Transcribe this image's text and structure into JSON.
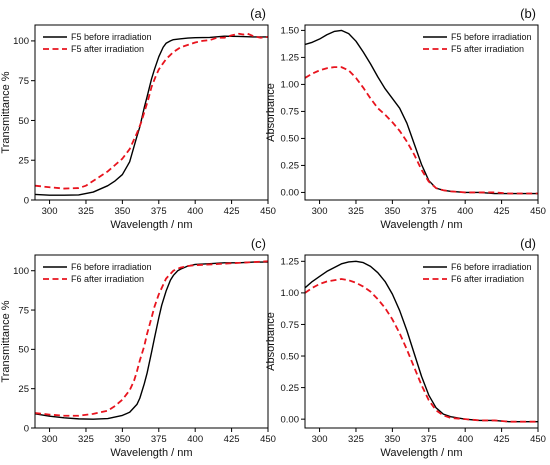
{
  "colors": {
    "before": "#000000",
    "after": "#e8141e",
    "axis": "#000000"
  },
  "chart_data": [
    {
      "type": "line",
      "panel_label": "(a)",
      "xlabel": "Wavelength / nm",
      "ylabel": "Transmittance %",
      "xlim": [
        290,
        450
      ],
      "ylim": [
        0,
        110
      ],
      "xticks": [
        300,
        325,
        350,
        375,
        400,
        425,
        450
      ],
      "yticks": [
        0,
        25,
        50,
        75,
        100
      ],
      "ytick_decimals": 0,
      "legend_position": "top-left",
      "series": [
        {
          "name": "F5 before irradiation",
          "style": "solid",
          "color": "#000000",
          "x": [
            290,
            300,
            310,
            320,
            330,
            340,
            345,
            350,
            355,
            360,
            362,
            365,
            367,
            370,
            372,
            375,
            378,
            380,
            383,
            385,
            390,
            395,
            400,
            410,
            420,
            430,
            440,
            450
          ],
          "y": [
            3.5,
            3,
            3,
            3.2,
            5,
            9,
            12,
            16,
            24,
            40,
            46,
            58,
            65,
            76,
            82,
            90,
            96,
            98.5,
            100,
            100.8,
            101.3,
            101.8,
            102,
            102.2,
            103,
            102.8,
            102.5,
            102.5
          ]
        },
        {
          "name": "F5 after irradiation",
          "style": "dashed",
          "color": "#e8141e",
          "x": [
            290,
            300,
            310,
            320,
            325,
            330,
            335,
            340,
            345,
            350,
            355,
            360,
            363,
            365,
            368,
            370,
            373,
            375,
            378,
            380,
            385,
            390,
            395,
            400,
            405,
            410,
            415,
            420,
            425,
            430,
            433,
            436,
            440,
            445,
            450
          ],
          "y": [
            9,
            8,
            7.2,
            7.5,
            9,
            12,
            15,
            18,
            22,
            26,
            32,
            42,
            49,
            55,
            64,
            71,
            78,
            82,
            86,
            88.5,
            93,
            96,
            97.5,
            99,
            100,
            100.5,
            102,
            102,
            103.5,
            104.5,
            104,
            104.5,
            103,
            102,
            102.5
          ]
        }
      ]
    },
    {
      "type": "line",
      "panel_label": "(b)",
      "xlabel": "Wavelength / nm",
      "ylabel": "Absorbance",
      "xlim": [
        290,
        450
      ],
      "ylim": [
        -0.07,
        1.55
      ],
      "xticks": [
        300,
        325,
        350,
        375,
        400,
        425,
        450
      ],
      "yticks": [
        0.0,
        0.25,
        0.5,
        0.75,
        1.0,
        1.25,
        1.5
      ],
      "ytick_decimals": 2,
      "legend_position": "top-right",
      "series": [
        {
          "name": "F5 before irradiation",
          "style": "solid",
          "color": "#000000",
          "x": [
            290,
            295,
            300,
            305,
            310,
            315,
            320,
            325,
            330,
            335,
            340,
            345,
            350,
            355,
            360,
            365,
            370,
            375,
            380,
            385,
            390,
            400,
            410,
            420,
            430,
            440,
            450
          ],
          "y": [
            1.37,
            1.39,
            1.42,
            1.46,
            1.49,
            1.5,
            1.47,
            1.4,
            1.3,
            1.19,
            1.07,
            0.96,
            0.87,
            0.78,
            0.64,
            0.45,
            0.26,
            0.11,
            0.04,
            0.02,
            0.01,
            0.0,
            0.0,
            -0.01,
            -0.01,
            -0.01,
            -0.01
          ]
        },
        {
          "name": "F5 after irradiation",
          "style": "dashed",
          "color": "#e8141e",
          "x": [
            290,
            295,
            300,
            305,
            310,
            315,
            320,
            325,
            330,
            335,
            340,
            345,
            350,
            355,
            360,
            365,
            370,
            375,
            380,
            385,
            390,
            400,
            410,
            420,
            430,
            440,
            450
          ],
          "y": [
            1.06,
            1.1,
            1.13,
            1.15,
            1.16,
            1.16,
            1.13,
            1.06,
            0.97,
            0.87,
            0.78,
            0.72,
            0.65,
            0.57,
            0.47,
            0.35,
            0.21,
            0.1,
            0.04,
            0.02,
            0.01,
            0.0,
            0.0,
            0.0,
            -0.01,
            -0.01,
            -0.01
          ]
        }
      ]
    },
    {
      "type": "line",
      "panel_label": "(c)",
      "xlabel": "Wavelength / nm",
      "ylabel": "Transmittance %",
      "xlim": [
        290,
        450
      ],
      "ylim": [
        0,
        110
      ],
      "xticks": [
        300,
        325,
        350,
        375,
        400,
        425,
        450
      ],
      "yticks": [
        0,
        25,
        50,
        75,
        100
      ],
      "ytick_decimals": 0,
      "legend_position": "top-left",
      "series": [
        {
          "name": "F6 before irradiation",
          "style": "solid",
          "color": "#000000",
          "x": [
            290,
            300,
            310,
            320,
            330,
            340,
            350,
            355,
            360,
            362,
            365,
            367,
            370,
            372,
            375,
            377,
            380,
            383,
            385,
            388,
            390,
            395,
            400,
            410,
            420,
            430,
            440,
            450
          ],
          "y": [
            9,
            7.5,
            6.5,
            5.8,
            5.6,
            6,
            8,
            10,
            15,
            19,
            28,
            35,
            48,
            57,
            70,
            78,
            87,
            94,
            97,
            100,
            101,
            103,
            104,
            104.5,
            105,
            105,
            105.5,
            105.5
          ]
        },
        {
          "name": "F6 after irradiation",
          "style": "dashed",
          "color": "#e8141e",
          "x": [
            290,
            300,
            310,
            320,
            330,
            340,
            345,
            350,
            355,
            358,
            360,
            362,
            365,
            367,
            370,
            372,
            375,
            378,
            380,
            383,
            385,
            390,
            395,
            400,
            410,
            420,
            430,
            440,
            450
          ],
          "y": [
            9.5,
            8.5,
            7.8,
            7.8,
            9,
            11,
            14,
            18,
            24,
            30,
            36,
            43,
            52,
            60,
            70,
            77,
            85,
            91,
            95,
            98,
            100,
            102,
            103,
            103.5,
            104,
            104.5,
            105,
            105.5,
            106
          ]
        }
      ]
    },
    {
      "type": "line",
      "panel_label": "(d)",
      "xlabel": "Wavelength / nm",
      "ylabel": "Absorbance",
      "xlim": [
        290,
        450
      ],
      "ylim": [
        -0.07,
        1.3
      ],
      "xticks": [
        300,
        325,
        350,
        375,
        400,
        425,
        450
      ],
      "yticks": [
        0.0,
        0.25,
        0.5,
        0.75,
        1.0,
        1.25
      ],
      "ytick_decimals": 2,
      "legend_position": "top-right",
      "series": [
        {
          "name": "F6 before irradiation",
          "style": "solid",
          "color": "#000000",
          "x": [
            290,
            295,
            300,
            305,
            310,
            315,
            320,
            325,
            330,
            335,
            340,
            345,
            350,
            355,
            360,
            365,
            370,
            375,
            380,
            385,
            390,
            400,
            410,
            420,
            430,
            440,
            450
          ],
          "y": [
            1.04,
            1.09,
            1.13,
            1.17,
            1.2,
            1.23,
            1.245,
            1.25,
            1.24,
            1.21,
            1.16,
            1.09,
            0.99,
            0.86,
            0.7,
            0.52,
            0.34,
            0.19,
            0.09,
            0.04,
            0.02,
            0.0,
            -0.01,
            -0.01,
            -0.02,
            -0.02,
            -0.02
          ]
        },
        {
          "name": "F6 after irradiation",
          "style": "dashed",
          "color": "#e8141e",
          "x": [
            290,
            295,
            300,
            305,
            310,
            315,
            320,
            325,
            330,
            335,
            340,
            345,
            350,
            355,
            360,
            365,
            370,
            375,
            380,
            385,
            390,
            400,
            410,
            420,
            430,
            440,
            450
          ],
          "y": [
            1.0,
            1.04,
            1.07,
            1.09,
            1.1,
            1.11,
            1.1,
            1.08,
            1.05,
            1.01,
            0.95,
            0.88,
            0.79,
            0.68,
            0.55,
            0.41,
            0.27,
            0.15,
            0.07,
            0.03,
            0.01,
            0.0,
            -0.01,
            -0.01,
            -0.02,
            -0.02,
            -0.02
          ]
        }
      ]
    }
  ]
}
